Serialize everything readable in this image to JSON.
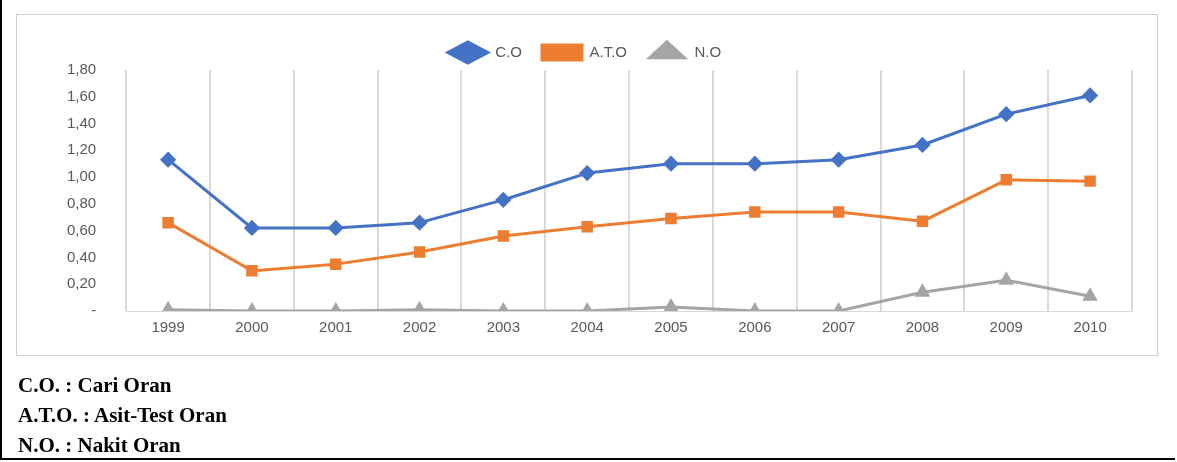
{
  "chart_data": {
    "type": "line",
    "categories": [
      "1999",
      "2000",
      "2001",
      "2002",
      "2003",
      "2004",
      "2005",
      "2006",
      "2007",
      "2008",
      "2009",
      "2010"
    ],
    "series": [
      {
        "name": "C.O",
        "color": "#4472c4",
        "marker": "diamond",
        "values": [
          1.13,
          0.62,
          0.62,
          0.66,
          0.83,
          1.03,
          1.1,
          1.1,
          1.13,
          1.24,
          1.47,
          1.61
        ]
      },
      {
        "name": "A.T.O",
        "color": "#ed7d31",
        "marker": "square",
        "values": [
          0.66,
          0.3,
          0.35,
          0.44,
          0.56,
          0.63,
          0.69,
          0.74,
          0.74,
          0.67,
          0.98,
          0.97
        ]
      },
      {
        "name": "N.O",
        "color": "#a5a5a5",
        "marker": "triangle",
        "values": [
          0.01,
          0,
          0,
          0.01,
          0,
          0,
          0.03,
          0,
          0,
          0.14,
          0.23,
          0.11
        ]
      }
    ],
    "ylim": [
      0,
      1.8
    ],
    "yticks": [
      {
        "value": 0,
        "label": "-"
      },
      {
        "value": 0.2,
        "label": "0,20"
      },
      {
        "value": 0.4,
        "label": "0,40"
      },
      {
        "value": 0.6,
        "label": "0,60"
      },
      {
        "value": 0.8,
        "label": "0,80"
      },
      {
        "value": 1,
        "label": "1,00"
      },
      {
        "value": 1.2,
        "label": "1,20"
      },
      {
        "value": 1.4,
        "label": "1,40"
      },
      {
        "value": 1.6,
        "label": "1,60"
      },
      {
        "value": 1.8,
        "label": "1,80"
      }
    ],
    "grid": "x",
    "legend": "top",
    "line_style": "solid",
    "annotations": [
      "C.O. : Cari Oran",
      "A.T.O. : Asit-Test Oran",
      "N.O. : Nakit Oran"
    ]
  }
}
